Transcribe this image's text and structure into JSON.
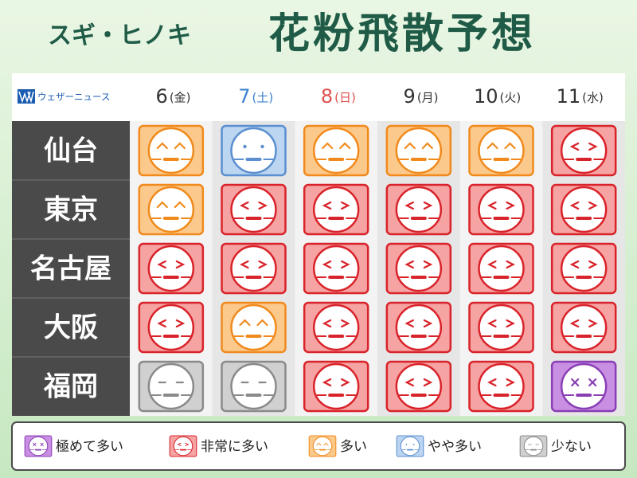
{
  "header": {
    "subtitle": "スギ・ヒノキ",
    "title": "花粉飛散予想",
    "logo": "ウェザーニュース"
  },
  "days": [
    {
      "day": "6",
      "weekday": "(金)",
      "color": "#333333"
    },
    {
      "day": "7",
      "weekday": "(土)",
      "color": "#3b7fd0"
    },
    {
      "day": "8",
      "weekday": "(日)",
      "color": "#e0504e"
    },
    {
      "day": "9",
      "weekday": "(月)",
      "color": "#333333"
    },
    {
      "day": "10",
      "weekday": "(火)",
      "color": "#333333"
    },
    {
      "day": "11",
      "weekday": "(水)",
      "color": "#333333"
    }
  ],
  "rows": [
    {
      "city": "仙台",
      "levels": [
        2,
        3,
        2,
        2,
        2,
        1
      ]
    },
    {
      "city": "東京",
      "levels": [
        2,
        1,
        1,
        1,
        1,
        1
      ]
    },
    {
      "city": "名古屋",
      "levels": [
        1,
        1,
        1,
        1,
        1,
        1
      ]
    },
    {
      "city": "大阪",
      "levels": [
        1,
        2,
        1,
        1,
        1,
        1
      ]
    },
    {
      "city": "福岡",
      "levels": [
        4,
        4,
        1,
        1,
        1,
        0
      ]
    }
  ],
  "legend": [
    {
      "label": "極めて多い",
      "border": "#8a3fb5",
      "fill": "#c98fe3",
      "face": "x"
    },
    {
      "label": "非常に多い",
      "border": "#d9232a",
      "fill": "#f5a3a3",
      "face": "gt"
    },
    {
      "label": "多い",
      "border": "#f08a1c",
      "fill": "#fcc98c",
      "face": "arc"
    },
    {
      "label": "やや多い",
      "border": "#5b8fd0",
      "fill": "#bcd6f1",
      "face": "dot"
    },
    {
      "label": "少ない",
      "border": "#8a8a8a",
      "fill": "#d0d0d0",
      "face": "dash"
    }
  ]
}
